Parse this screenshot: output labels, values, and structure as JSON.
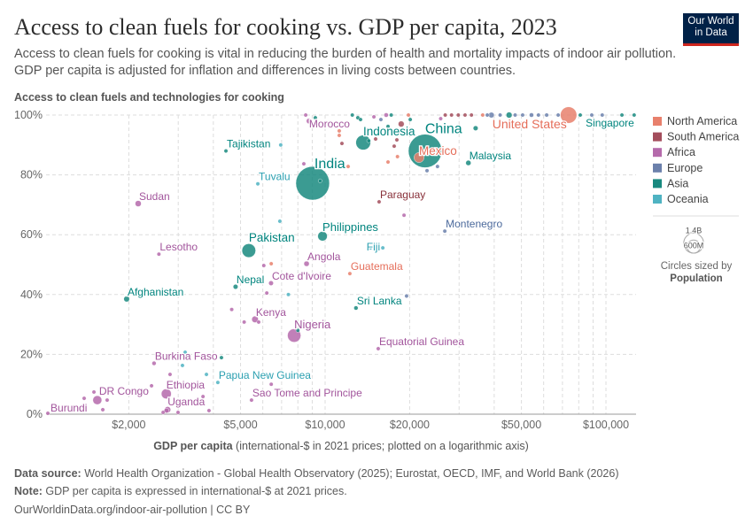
{
  "header": {
    "title": "Access to clean fuels for cooking vs. GDP per capita, 2023",
    "subtitle": "Access to clean fuels for cooking is vital in reducing the burden of health and mortality impacts of indoor air pollution. GDP per capita is adjusted for inflation and differences in living costs between countries.",
    "logo_line1": "Our World",
    "logo_line2": "in Data"
  },
  "footer": {
    "source_label": "Data source:",
    "source_text": " World Health Organization - Global Health Observatory (2025); Eurostat, OECD, IMF, and World Bank (2026)",
    "note_label": "Note:",
    "note_text": " GDP per capita is expressed in international-$ at 2021 prices.",
    "url": "OurWorldinData.org/indoor-air-pollution | CC BY"
  },
  "chart_data": {
    "type": "scatter",
    "ylabel": "Access to clean fuels and technologies for cooking",
    "xlabel_bold": "GDP per capita",
    "xlabel_rest": " (international-$ in 2021 prices; plotted on a logarithmic axis)",
    "x_scale": "log",
    "xlim": [
      1015,
      128000
    ],
    "ylim": [
      0,
      100
    ],
    "x_ticks": [
      2000,
      5000,
      10000,
      20000,
      50000,
      100000
    ],
    "x_tick_labels": [
      "$2,000",
      "$5,000",
      "$10,000",
      "$20,000",
      "$50,000",
      "$100,000"
    ],
    "y_ticks": [
      0,
      20,
      40,
      60,
      80,
      100
    ],
    "y_tick_labels": [
      "0%",
      "20%",
      "40%",
      "60%",
      "80%",
      "100%"
    ],
    "grid": true,
    "legend_placement": "right",
    "legend": [
      {
        "name": "North America",
        "color": "#e8806c",
        "text_color": "#e56e5a"
      },
      {
        "name": "South America",
        "color": "#a34d5c",
        "text_color": "#883039"
      },
      {
        "name": "Africa",
        "color": "#b56aab",
        "text_color": "#a2559c"
      },
      {
        "name": "Europe",
        "color": "#6b80ab",
        "text_color": "#4c6a9c"
      },
      {
        "name": "Asia",
        "color": "#19897f",
        "text_color": "#00847e"
      },
      {
        "name": "Oceania",
        "color": "#4fb3c2",
        "text_color": "#2a9fb0"
      }
    ],
    "size_legend": {
      "title": "Circles sized by",
      "variable": "Population",
      "large_label": "1.4B",
      "small_label": "600M",
      "large_value": 1400,
      "small_value": 600
    },
    "points": [
      {
        "label": "Burundi",
        "gdp": 1030,
        "pct": 0.3,
        "pop": 13,
        "region": "Africa"
      },
      {
        "label": "DR Congo",
        "gdp": 1545,
        "pct": 4.7,
        "pop": 102,
        "region": "Africa"
      },
      {
        "label": "Ethiopia",
        "gdp": 2720,
        "pct": 6.8,
        "pop": 127,
        "region": "Africa"
      },
      {
        "label": "Uganda",
        "gdp": 2750,
        "pct": 1.5,
        "pop": 49,
        "region": "Africa"
      },
      {
        "label": "Burkina Faso",
        "gdp": 2460,
        "pct": 17,
        "pop": 23,
        "region": "Africa"
      },
      {
        "label": "Sudan",
        "gdp": 2160,
        "pct": 70.4,
        "pop": 48,
        "region": "Africa"
      },
      {
        "label": "Lesotho",
        "gdp": 2560,
        "pct": 53.5,
        "pop": 2.3,
        "region": "Africa"
      },
      {
        "label": "Afghanistan",
        "gdp": 1965,
        "pct": 38.5,
        "pop": 42,
        "region": "Asia"
      },
      {
        "label": "Tajikistan",
        "gdp": 4435,
        "pct": 88,
        "pop": 10,
        "region": "Asia"
      },
      {
        "label": "Tuvalu",
        "gdp": 5760,
        "pct": 77,
        "pop": 0.01,
        "region": "Oceania"
      },
      {
        "label": "Pakistan",
        "gdp": 5350,
        "pct": 54.7,
        "pop": 240,
        "region": "Asia"
      },
      {
        "label": "Nepal",
        "gdp": 4800,
        "pct": 42.6,
        "pop": 30,
        "region": "Asia"
      },
      {
        "label": "Kenya",
        "gdp": 5630,
        "pct": 31.7,
        "pop": 55,
        "region": "Africa"
      },
      {
        "label": "Cote d'Ivoire",
        "gdp": 6420,
        "pct": 43.8,
        "pop": 29,
        "region": "Africa"
      },
      {
        "label": "Papua New Guinea",
        "gdp": 4150,
        "pct": 10.6,
        "pop": 10,
        "region": "Oceania"
      },
      {
        "label": "Sao Tome and Principe",
        "gdp": 5470,
        "pct": 4.7,
        "pop": 0.23,
        "region": "Africa"
      },
      {
        "label": "Nigeria",
        "gdp": 7760,
        "pct": 26.3,
        "pop": 228,
        "region": "Africa"
      },
      {
        "label": "Angola",
        "gdp": 8590,
        "pct": 50.3,
        "pop": 37,
        "region": "Africa"
      },
      {
        "label": "India",
        "gdp": 9030,
        "pct": 77.2,
        "pop": 1438,
        "region": "Asia"
      },
      {
        "label": "Philippines",
        "gdp": 9790,
        "pct": 59.5,
        "pop": 115,
        "region": "Asia"
      },
      {
        "label": "Morocco",
        "gdp": 8770,
        "pct": 98,
        "pop": 38,
        "region": "Africa"
      },
      {
        "label": "Indonesia",
        "gdp": 13670,
        "pct": 90.8,
        "pop": 277,
        "region": "Asia"
      },
      {
        "label": "China",
        "gdp": 22700,
        "pct": 88,
        "pop": 1422,
        "region": "Asia"
      },
      {
        "label": "Mexico",
        "gdp": 21600,
        "pct": 85.8,
        "pop": 129,
        "region": "North America"
      },
      {
        "label": "Paraguay",
        "gdp": 15570,
        "pct": 71,
        "pop": 6.9,
        "region": "South America"
      },
      {
        "label": "Fiji",
        "gdp": 16050,
        "pct": 55.6,
        "pop": 0.9,
        "region": "Oceania"
      },
      {
        "label": "Guatemala",
        "gdp": 12250,
        "pct": 47,
        "pop": 18,
        "region": "North America"
      },
      {
        "label": "Sri Lanka",
        "gdp": 12880,
        "pct": 35.5,
        "pop": 23,
        "region": "Asia"
      },
      {
        "label": "Equatorial Guinea",
        "gdp": 15460,
        "pct": 21.9,
        "pop": 1.7,
        "region": "Africa"
      },
      {
        "label": "Montenegro",
        "gdp": 26680,
        "pct": 61.2,
        "pop": 0.6,
        "region": "Europe"
      },
      {
        "label": "Malaysia",
        "gdp": 32370,
        "pct": 84,
        "pop": 35,
        "region": "Asia"
      },
      {
        "label": "United States",
        "gdp": 73600,
        "pct": 100,
        "pop": 343,
        "region": "North America"
      },
      {
        "label": "Singapore",
        "gdp": 126000,
        "pct": 100,
        "pop": 5.9,
        "region": "Asia"
      },
      {
        "gdp": 1387,
        "pct": 5.3,
        "pop": 1,
        "region": "Africa"
      },
      {
        "gdp": 1503,
        "pct": 7.4,
        "pop": 6,
        "region": "Africa"
      },
      {
        "gdp": 1675,
        "pct": 4.7,
        "pop": 4,
        "region": "Africa"
      },
      {
        "gdp": 1616,
        "pct": 1.5,
        "pop": 20,
        "region": "Africa"
      },
      {
        "gdp": 2410,
        "pct": 9.5,
        "pop": 5,
        "region": "Africa"
      },
      {
        "gdp": 2805,
        "pct": 13.3,
        "pop": 3,
        "region": "Africa"
      },
      {
        "gdp": 3105,
        "pct": 16.3,
        "pop": 1,
        "region": "Oceania"
      },
      {
        "gdp": 3175,
        "pct": 20.7,
        "pop": 1,
        "region": "Oceania"
      },
      {
        "gdp": 3675,
        "pct": 5.9,
        "pop": 2,
        "region": "Africa"
      },
      {
        "gdp": 3780,
        "pct": 13.3,
        "pop": 1,
        "region": "Oceania"
      },
      {
        "gdp": 4275,
        "pct": 18.9,
        "pop": 1,
        "region": "Asia"
      },
      {
        "gdp": 2650,
        "pct": 0.6,
        "pop": 15,
        "region": "Africa"
      },
      {
        "gdp": 2725,
        "pct": 1.2,
        "pop": 30,
        "region": "Africa"
      },
      {
        "gdp": 2995,
        "pct": 0.6,
        "pop": 10,
        "region": "Africa"
      },
      {
        "gdp": 3860,
        "pct": 1.2,
        "pop": 3,
        "region": "Africa"
      },
      {
        "gdp": 6430,
        "pct": 10,
        "pop": 2,
        "region": "Africa"
      },
      {
        "gdp": 4650,
        "pct": 35,
        "pop": 2,
        "region": "Africa"
      },
      {
        "gdp": 5150,
        "pct": 30.8,
        "pop": 3,
        "region": "Africa"
      },
      {
        "gdp": 5800,
        "pct": 30.8,
        "pop": 2,
        "region": "Africa"
      },
      {
        "gdp": 6050,
        "pct": 49.7,
        "pop": 3,
        "region": "Africa"
      },
      {
        "gdp": 6430,
        "pct": 50.3,
        "pop": 2,
        "region": "North America"
      },
      {
        "gdp": 6200,
        "pct": 40.5,
        "pop": 2,
        "region": "Africa"
      },
      {
        "gdp": 7400,
        "pct": 40,
        "pop": 1,
        "region": "Oceania"
      },
      {
        "gdp": 6900,
        "pct": 64.5,
        "pop": 1,
        "region": "Oceania"
      },
      {
        "gdp": 6950,
        "pct": 90,
        "pop": 1,
        "region": "Oceania"
      },
      {
        "gdp": 8000,
        "pct": 28,
        "pop": 5,
        "region": "Asia"
      },
      {
        "gdp": 14500,
        "pct": 55.6,
        "pop": 1,
        "region": "Oceania"
      },
      {
        "gdp": 19100,
        "pct": 66.5,
        "pop": 1,
        "region": "Africa"
      },
      {
        "gdp": 19500,
        "pct": 39.5,
        "pop": 1,
        "region": "Europe"
      },
      {
        "gdp": 12080,
        "pct": 82.8,
        "pop": 4,
        "region": "North America"
      },
      {
        "gdp": 8400,
        "pct": 83.7,
        "pop": 1,
        "region": "Africa"
      },
      {
        "gdp": 9600,
        "pct": 78,
        "pop": 5,
        "region": "Asia"
      },
      {
        "gdp": 8530,
        "pct": 100,
        "pop": 3,
        "region": "Africa"
      },
      {
        "gdp": 9230,
        "pct": 99.1,
        "pop": 1,
        "region": "Asia"
      },
      {
        "gdp": 11230,
        "pct": 94.7,
        "pop": 2,
        "region": "North America"
      },
      {
        "gdp": 11230,
        "pct": 93.2,
        "pop": 2,
        "region": "North America"
      },
      {
        "gdp": 11480,
        "pct": 90.5,
        "pop": 2,
        "region": "South America"
      },
      {
        "gdp": 12500,
        "pct": 100,
        "pop": 3,
        "region": "Asia"
      },
      {
        "gdp": 13080,
        "pct": 99.1,
        "pop": 20,
        "region": "Asia"
      },
      {
        "gdp": 13370,
        "pct": 98.5,
        "pop": 4,
        "region": "Asia"
      },
      {
        "gdp": 14920,
        "pct": 99.4,
        "pop": 8,
        "region": "Africa"
      },
      {
        "gdp": 15130,
        "pct": 92,
        "pop": 6,
        "region": "South America"
      },
      {
        "gdp": 14300,
        "pct": 91.4,
        "pop": 3,
        "region": "Asia"
      },
      {
        "gdp": 16500,
        "pct": 100,
        "pop": 25,
        "region": "Africa"
      },
      {
        "gdp": 15800,
        "pct": 98.5,
        "pop": 2,
        "region": "Europe"
      },
      {
        "gdp": 17200,
        "pct": 100,
        "pop": 2,
        "region": "Asia"
      },
      {
        "gdp": 18660,
        "pct": 97,
        "pop": 45,
        "region": "South America"
      },
      {
        "gdp": 17620,
        "pct": 89.6,
        "pop": 2,
        "region": "South America"
      },
      {
        "gdp": 18010,
        "pct": 91.7,
        "pop": 3,
        "region": "South America"
      },
      {
        "gdp": 16750,
        "pct": 96.2,
        "pop": 2,
        "region": "Asia"
      },
      {
        "gdp": 16750,
        "pct": 84.3,
        "pop": 2,
        "region": "North America"
      },
      {
        "gdp": 18100,
        "pct": 86.1,
        "pop": 3,
        "region": "North America"
      },
      {
        "gdp": 19800,
        "pct": 100,
        "pop": 2,
        "region": "North America"
      },
      {
        "gdp": 20100,
        "pct": 98.5,
        "pop": 3,
        "region": "Asia"
      },
      {
        "gdp": 23060,
        "pct": 81.4,
        "pop": 1,
        "region": "Europe"
      },
      {
        "gdp": 25130,
        "pct": 82.8,
        "pop": 1,
        "region": "Europe"
      },
      {
        "gdp": 26780,
        "pct": 100,
        "pop": 10,
        "region": "South America"
      },
      {
        "gdp": 25800,
        "pct": 98.8,
        "pop": 2,
        "region": "Africa"
      },
      {
        "gdp": 28200,
        "pct": 100,
        "pop": 4,
        "region": "South America"
      },
      {
        "gdp": 29800,
        "pct": 100,
        "pop": 3,
        "region": "South America"
      },
      {
        "gdp": 31500,
        "pct": 100,
        "pop": 2,
        "region": "South America"
      },
      {
        "gdp": 33200,
        "pct": 100,
        "pop": 3,
        "region": "South America"
      },
      {
        "gdp": 34350,
        "pct": 95.6,
        "pop": 30,
        "region": "Asia"
      },
      {
        "gdp": 36400,
        "pct": 100,
        "pop": 2,
        "region": "North America"
      },
      {
        "gdp": 37800,
        "pct": 100,
        "pop": 3,
        "region": "Europe"
      },
      {
        "gdp": 39100,
        "pct": 100,
        "pop": 40,
        "region": "Europe"
      },
      {
        "gdp": 42000,
        "pct": 100,
        "pop": 8,
        "region": "Europe"
      },
      {
        "gdp": 45200,
        "pct": 100,
        "pop": 45,
        "region": "Asia"
      },
      {
        "gdp": 47500,
        "pct": 100,
        "pop": 15,
        "region": "Europe"
      },
      {
        "gdp": 50500,
        "pct": 100,
        "pop": 10,
        "region": "Europe"
      },
      {
        "gdp": 54300,
        "pct": 100,
        "pop": 25,
        "region": "Europe"
      },
      {
        "gdp": 57500,
        "pct": 100,
        "pop": 5,
        "region": "Europe"
      },
      {
        "gdp": 61500,
        "pct": 100,
        "pop": 20,
        "region": "Europe"
      },
      {
        "gdp": 67600,
        "pct": 100,
        "pop": 9,
        "region": "Europe"
      },
      {
        "gdp": 81000,
        "pct": 100,
        "pop": 4,
        "region": "Asia"
      },
      {
        "gdp": 89000,
        "pct": 100,
        "pop": 1,
        "region": "Europe"
      },
      {
        "gdp": 97000,
        "pct": 100,
        "pop": 2,
        "region": "Europe"
      },
      {
        "gdp": 114000,
        "pct": 100,
        "pop": 1,
        "region": "Asia"
      }
    ]
  }
}
